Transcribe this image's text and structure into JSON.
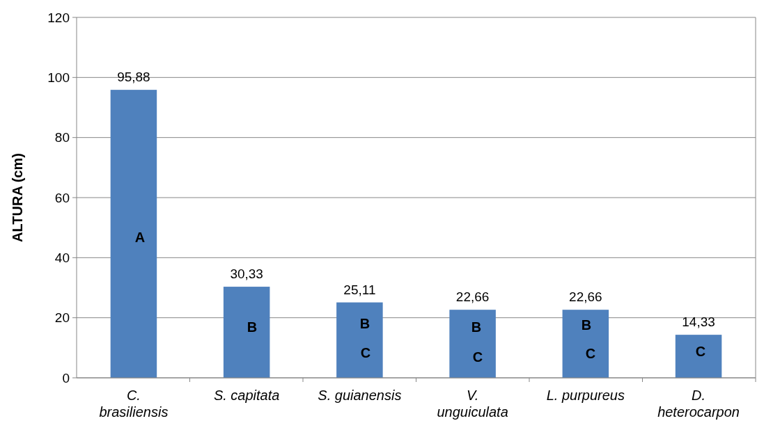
{
  "chart_data": {
    "type": "bar",
    "ylabel": "ALTURA (cm)",
    "categories": [
      "C. brasiliensis",
      "S. capitata",
      "S. guianensis",
      "V. unguiculata",
      "L. purpureus",
      "D. heterocarpon"
    ],
    "values": [
      95.88,
      30.33,
      25.11,
      22.66,
      22.66,
      14.33
    ],
    "value_labels": [
      "95,88",
      "30,33",
      "25,11",
      "22,66",
      "22,66",
      "14,33"
    ],
    "color": "#4f81bd",
    "ylim": [
      0,
      120
    ],
    "yticks": [
      0,
      20,
      40,
      60,
      80,
      100,
      120
    ],
    "grid": "y",
    "annotations": [
      "A",
      "B",
      "B",
      "C",
      "B",
      "C",
      "B",
      "C",
      "C"
    ]
  }
}
